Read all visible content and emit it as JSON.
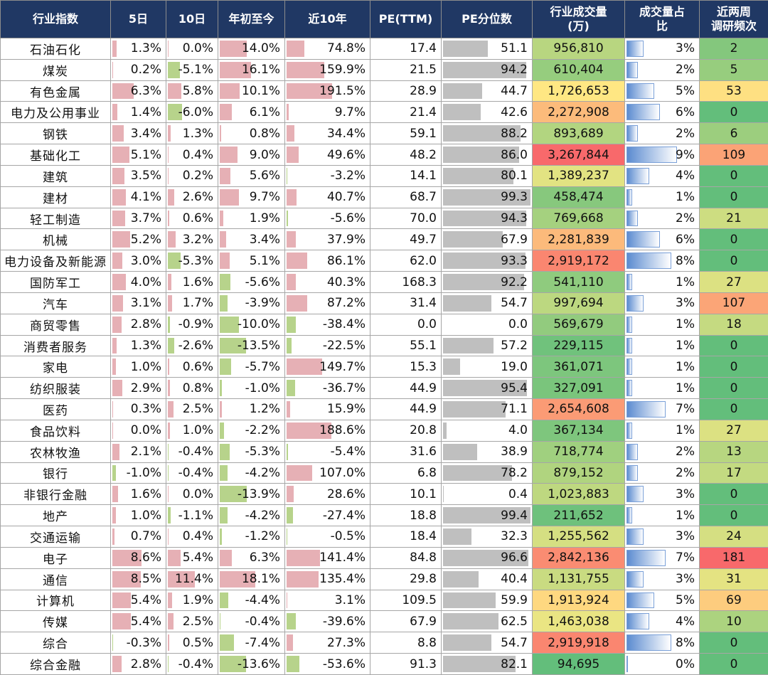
{
  "headers": [
    "行业指数",
    "5日",
    "10日",
    "年初至今",
    "近10年",
    "PE(TTM)",
    "PE分位数",
    "行业成交量\n(万)",
    "成交量占\n比",
    "近两周\n调研频次"
  ],
  "colors": {
    "header_bg": "#203864",
    "positive_bar": "#e6b0b5",
    "negative_bar": "#b7d38b",
    "pe_bar": "#bfbfbf",
    "share_bar": "#5b8bd0",
    "scale_low": "#63be7b",
    "scale_mid": "#ffeb84",
    "scale_high": "#f8696b"
  },
  "rows": [
    {
      "name": "石油石化",
      "d5": "1.3%",
      "d10": "0.0%",
      "ytd": "14.0%",
      "y10": "74.8%",
      "pe": "17.4",
      "pe_pct": "51.1",
      "volume": "956,810",
      "share": "3%",
      "visits": "2"
    },
    {
      "name": "煤炭",
      "d5": "0.2%",
      "d10": "-5.1%",
      "ytd": "16.1%",
      "y10": "159.9%",
      "pe": "21.5",
      "pe_pct": "94.2",
      "volume": "610,404",
      "share": "2%",
      "visits": "5"
    },
    {
      "name": "有色金属",
      "d5": "6.3%",
      "d10": "5.8%",
      "ytd": "10.1%",
      "y10": "191.5%",
      "pe": "28.9",
      "pe_pct": "44.7",
      "volume": "1,726,653",
      "share": "5%",
      "visits": "53"
    },
    {
      "name": "电力及公用事业",
      "d5": "1.4%",
      "d10": "-6.0%",
      "ytd": "6.1%",
      "y10": "9.7%",
      "pe": "21.4",
      "pe_pct": "42.6",
      "volume": "2,272,908",
      "share": "6%",
      "visits": "0"
    },
    {
      "name": "钢铁",
      "d5": "3.4%",
      "d10": "1.3%",
      "ytd": "0.8%",
      "y10": "34.4%",
      "pe": "59.1",
      "pe_pct": "88.2",
      "volume": "893,689",
      "share": "2%",
      "visits": "6"
    },
    {
      "name": "基础化工",
      "d5": "5.1%",
      "d10": "0.4%",
      "ytd": "9.0%",
      "y10": "49.6%",
      "pe": "48.2",
      "pe_pct": "86.0",
      "volume": "3,267,844",
      "share": "9%",
      "visits": "109"
    },
    {
      "name": "建筑",
      "d5": "3.5%",
      "d10": "0.2%",
      "ytd": "5.6%",
      "y10": "-3.2%",
      "pe": "14.1",
      "pe_pct": "80.1",
      "volume": "1,389,237",
      "share": "4%",
      "visits": "0"
    },
    {
      "name": "建材",
      "d5": "4.1%",
      "d10": "2.6%",
      "ytd": "9.7%",
      "y10": "40.7%",
      "pe": "68.7",
      "pe_pct": "99.3",
      "volume": "458,474",
      "share": "1%",
      "visits": "0"
    },
    {
      "name": "轻工制造",
      "d5": "3.7%",
      "d10": "0.6%",
      "ytd": "1.9%",
      "y10": "-5.6%",
      "pe": "70.0",
      "pe_pct": "94.3",
      "volume": "769,668",
      "share": "2%",
      "visits": "21"
    },
    {
      "name": "机械",
      "d5": "5.2%",
      "d10": "3.2%",
      "ytd": "3.4%",
      "y10": "37.9%",
      "pe": "49.7",
      "pe_pct": "67.9",
      "volume": "2,281,839",
      "share": "6%",
      "visits": "0"
    },
    {
      "name": "电力设备及新能源",
      "d5": "3.0%",
      "d10": "-5.3%",
      "ytd": "5.1%",
      "y10": "86.1%",
      "pe": "62.0",
      "pe_pct": "93.3",
      "volume": "2,919,172",
      "share": "8%",
      "visits": "0"
    },
    {
      "name": "国防军工",
      "d5": "4.0%",
      "d10": "1.6%",
      "ytd": "-5.6%",
      "y10": "40.3%",
      "pe": "168.3",
      "pe_pct": "92.2",
      "volume": "541,110",
      "share": "1%",
      "visits": "27"
    },
    {
      "name": "汽车",
      "d5": "3.1%",
      "d10": "1.7%",
      "ytd": "-3.9%",
      "y10": "87.2%",
      "pe": "31.4",
      "pe_pct": "54.7",
      "volume": "997,694",
      "share": "3%",
      "visits": "107"
    },
    {
      "name": "商贸零售",
      "d5": "2.8%",
      "d10": "-0.9%",
      "ytd": "-10.0%",
      "y10": "-38.4%",
      "pe": "0.0",
      "pe_pct": "0.0",
      "volume": "569,679",
      "share": "1%",
      "visits": "18"
    },
    {
      "name": "消费者服务",
      "d5": "1.3%",
      "d10": "-2.6%",
      "ytd": "-13.5%",
      "y10": "-22.5%",
      "pe": "55.1",
      "pe_pct": "57.2",
      "volume": "229,115",
      "share": "1%",
      "visits": "0"
    },
    {
      "name": "家电",
      "d5": "1.0%",
      "d10": "0.6%",
      "ytd": "-5.7%",
      "y10": "149.7%",
      "pe": "15.3",
      "pe_pct": "19.0",
      "volume": "361,071",
      "share": "1%",
      "visits": "0"
    },
    {
      "name": "纺织服装",
      "d5": "2.9%",
      "d10": "0.8%",
      "ytd": "-1.0%",
      "y10": "-36.7%",
      "pe": "44.9",
      "pe_pct": "95.4",
      "volume": "327,091",
      "share": "1%",
      "visits": "0"
    },
    {
      "name": "医药",
      "d5": "0.3%",
      "d10": "2.5%",
      "ytd": "1.2%",
      "y10": "15.9%",
      "pe": "44.9",
      "pe_pct": "71.1",
      "volume": "2,654,608",
      "share": "7%",
      "visits": "0"
    },
    {
      "name": "食品饮料",
      "d5": "0.0%",
      "d10": "1.0%",
      "ytd": "-2.2%",
      "y10": "188.6%",
      "pe": "20.8",
      "pe_pct": "4.0",
      "volume": "367,134",
      "share": "1%",
      "visits": "27"
    },
    {
      "name": "农林牧渔",
      "d5": "2.1%",
      "d10": "-0.4%",
      "ytd": "-5.3%",
      "y10": "-5.4%",
      "pe": "31.6",
      "pe_pct": "38.9",
      "volume": "718,774",
      "share": "2%",
      "visits": "13"
    },
    {
      "name": "银行",
      "d5": "-1.0%",
      "d10": "-0.4%",
      "ytd": "-4.2%",
      "y10": "107.0%",
      "pe": "6.8",
      "pe_pct": "78.2",
      "volume": "879,152",
      "share": "2%",
      "visits": "17"
    },
    {
      "name": "非银行金融",
      "d5": "1.6%",
      "d10": "0.0%",
      "ytd": "-13.9%",
      "y10": "28.6%",
      "pe": "10.1",
      "pe_pct": "0.4",
      "volume": "1,023,883",
      "share": "3%",
      "visits": "0"
    },
    {
      "name": "地产",
      "d5": "1.0%",
      "d10": "-1.1%",
      "ytd": "-4.2%",
      "y10": "-27.4%",
      "pe": "18.8",
      "pe_pct": "99.4",
      "volume": "211,652",
      "share": "1%",
      "visits": "0"
    },
    {
      "name": "交通运输",
      "d5": "0.7%",
      "d10": "0.4%",
      "ytd": "-1.2%",
      "y10": "-0.5%",
      "pe": "18.4",
      "pe_pct": "32.3",
      "volume": "1,255,562",
      "share": "3%",
      "visits": "24"
    },
    {
      "name": "电子",
      "d5": "8.6%",
      "d10": "5.4%",
      "ytd": "6.3%",
      "y10": "141.4%",
      "pe": "84.8",
      "pe_pct": "96.6",
      "volume": "2,842,136",
      "share": "7%",
      "visits": "181"
    },
    {
      "name": "通信",
      "d5": "8.5%",
      "d10": "11.4%",
      "ytd": "18.1%",
      "y10": "135.4%",
      "pe": "29.8",
      "pe_pct": "40.4",
      "volume": "1,131,755",
      "share": "3%",
      "visits": "31"
    },
    {
      "name": "计算机",
      "d5": "5.4%",
      "d10": "1.9%",
      "ytd": "-4.4%",
      "y10": "3.1%",
      "pe": "109.5",
      "pe_pct": "59.9",
      "volume": "1,913,924",
      "share": "5%",
      "visits": "69"
    },
    {
      "name": "传媒",
      "d5": "5.4%",
      "d10": "2.5%",
      "ytd": "-0.4%",
      "y10": "-39.6%",
      "pe": "67.9",
      "pe_pct": "62.5",
      "volume": "1,463,038",
      "share": "4%",
      "visits": "10"
    },
    {
      "name": "综合",
      "d5": "-0.3%",
      "d10": "0.5%",
      "ytd": "-7.4%",
      "y10": "27.3%",
      "pe": "8.8",
      "pe_pct": "54.7",
      "volume": "2,919,918",
      "share": "8%",
      "visits": "0"
    },
    {
      "name": "综合金融",
      "d5": "2.8%",
      "d10": "-0.4%",
      "ytd": "-13.6%",
      "y10": "-53.6%",
      "pe": "91.3",
      "pe_pct": "82.1",
      "volume": "94,695",
      "share": "0%",
      "visits": "0"
    }
  ],
  "chart_data": {
    "type": "table",
    "columns": [
      "行业指数",
      "5日",
      "10日",
      "年初至今",
      "近10年",
      "PE(TTM)",
      "PE分位数",
      "行业成交量(万)",
      "成交量占比",
      "近两周调研频次"
    ],
    "categories": [
      "石油石化",
      "煤炭",
      "有色金属",
      "电力及公用事业",
      "钢铁",
      "基础化工",
      "建筑",
      "建材",
      "轻工制造",
      "机械",
      "电力设备及新能源",
      "国防军工",
      "汽车",
      "商贸零售",
      "消费者服务",
      "家电",
      "纺织服装",
      "医药",
      "食品饮料",
      "农林牧渔",
      "银行",
      "非银行金融",
      "地产",
      "交通运输",
      "电子",
      "通信",
      "计算机",
      "传媒",
      "综合",
      "综合金融"
    ],
    "series": [
      {
        "name": "5日",
        "values": [
          1.3,
          0.2,
          6.3,
          1.4,
          3.4,
          5.1,
          3.5,
          4.1,
          3.7,
          5.2,
          3.0,
          4.0,
          3.1,
          2.8,
          1.3,
          1.0,
          2.9,
          0.3,
          0.0,
          2.1,
          -1.0,
          1.6,
          1.0,
          0.7,
          8.6,
          8.5,
          5.4,
          5.4,
          -0.3,
          2.8
        ]
      },
      {
        "name": "10日",
        "values": [
          0.0,
          -5.1,
          5.8,
          -6.0,
          1.3,
          0.4,
          0.2,
          2.6,
          0.6,
          3.2,
          -5.3,
          1.6,
          1.7,
          -0.9,
          -2.6,
          0.6,
          0.8,
          2.5,
          1.0,
          -0.4,
          -0.4,
          0.0,
          -1.1,
          0.4,
          5.4,
          11.4,
          1.9,
          2.5,
          0.5,
          -0.4
        ]
      },
      {
        "name": "年初至今",
        "values": [
          14.0,
          16.1,
          10.1,
          6.1,
          0.8,
          9.0,
          5.6,
          9.7,
          1.9,
          3.4,
          5.1,
          -5.6,
          -3.9,
          -10.0,
          -13.5,
          -5.7,
          -1.0,
          1.2,
          -2.2,
          -5.3,
          -4.2,
          -13.9,
          -4.2,
          -1.2,
          6.3,
          18.1,
          -4.4,
          -0.4,
          -7.4,
          -13.6
        ]
      },
      {
        "name": "近10年",
        "values": [
          74.8,
          159.9,
          191.5,
          9.7,
          34.4,
          49.6,
          -3.2,
          40.7,
          -5.6,
          37.9,
          86.1,
          40.3,
          87.2,
          -38.4,
          -22.5,
          149.7,
          -36.7,
          15.9,
          188.6,
          -5.4,
          107.0,
          28.6,
          -27.4,
          -0.5,
          141.4,
          135.4,
          3.1,
          -39.6,
          27.3,
          -53.6
        ]
      },
      {
        "name": "PE(TTM)",
        "values": [
          17.4,
          21.5,
          28.9,
          21.4,
          59.1,
          48.2,
          14.1,
          68.7,
          70.0,
          49.7,
          62.0,
          168.3,
          31.4,
          0.0,
          55.1,
          15.3,
          44.9,
          44.9,
          20.8,
          31.6,
          6.8,
          10.1,
          18.8,
          18.4,
          84.8,
          29.8,
          109.5,
          67.9,
          8.8,
          91.3
        ]
      },
      {
        "name": "PE分位数",
        "values": [
          51.1,
          94.2,
          44.7,
          42.6,
          88.2,
          86.0,
          80.1,
          99.3,
          94.3,
          67.9,
          93.3,
          92.2,
          54.7,
          0.0,
          57.2,
          19.0,
          95.4,
          71.1,
          4.0,
          38.9,
          78.2,
          0.4,
          99.4,
          32.3,
          96.6,
          40.4,
          59.9,
          62.5,
          54.7,
          82.1
        ]
      },
      {
        "name": "行业成交量(万)",
        "values": [
          956810,
          610404,
          1726653,
          2272908,
          893689,
          3267844,
          1389237,
          458474,
          769668,
          2281839,
          2919172,
          541110,
          997694,
          569679,
          229115,
          361071,
          327091,
          2654608,
          367134,
          718774,
          879152,
          1023883,
          211652,
          1255562,
          2842136,
          1131755,
          1913924,
          1463038,
          2919918,
          94695
        ]
      },
      {
        "name": "成交量占比",
        "values": [
          3,
          2,
          5,
          6,
          2,
          9,
          4,
          1,
          2,
          6,
          8,
          1,
          3,
          1,
          1,
          1,
          1,
          7,
          1,
          2,
          2,
          3,
          1,
          3,
          7,
          3,
          5,
          4,
          8,
          0
        ]
      },
      {
        "name": "近两周调研频次",
        "values": [
          2,
          5,
          53,
          0,
          6,
          109,
          0,
          0,
          21,
          0,
          0,
          27,
          107,
          18,
          0,
          0,
          0,
          0,
          27,
          13,
          17,
          0,
          0,
          24,
          181,
          31,
          69,
          10,
          0,
          0
        ]
      }
    ]
  }
}
